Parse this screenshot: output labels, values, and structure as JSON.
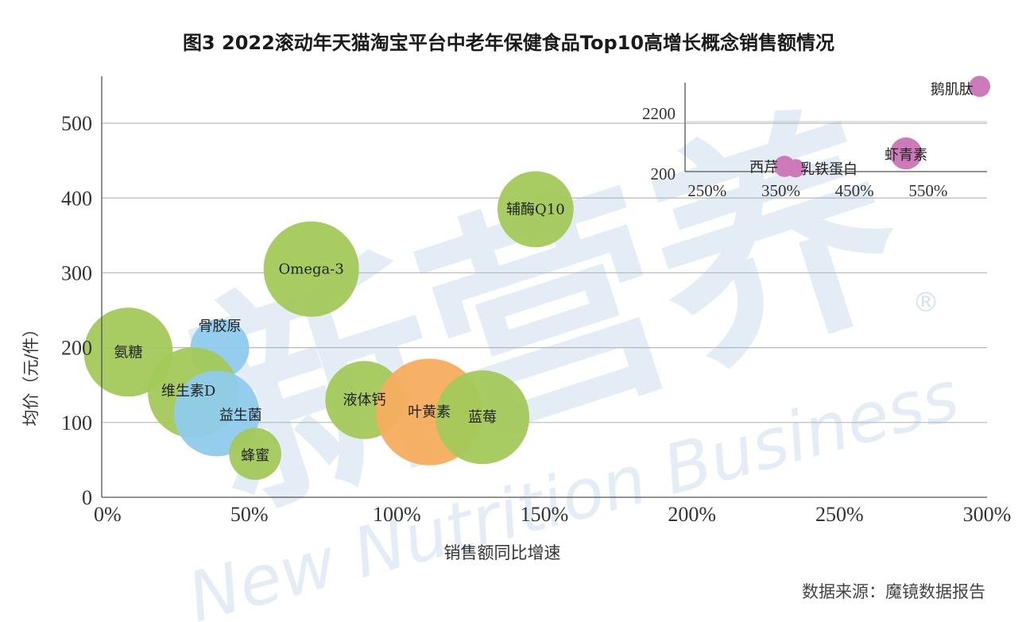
{
  "chart_data": {
    "type": "scatter",
    "title": "图3 2022滚动年天猫淘宝平台中老年保健食品Top10高增长概念销售额情况",
    "xlabel": "销售额同比增速",
    "ylabel": "均价（元/件）",
    "xlim": [
      0,
      3.0
    ],
    "ylim": [
      0,
      550
    ],
    "xticks": [
      "0%",
      "50%",
      "100%",
      "150%",
      "200%",
      "250%",
      "300%"
    ],
    "yticks": [
      "0",
      "100",
      "200",
      "300",
      "400",
      "500"
    ],
    "grid": "horizontal",
    "points": [
      {
        "label": "氨糖",
        "x": 0.09,
        "y": 194,
        "size": 1.0,
        "color": "#a3c95a"
      },
      {
        "label": "骨胶原",
        "x": 0.4,
        "y": 199,
        "size": 0.3,
        "color": "#8fcbec"
      },
      {
        "label": "维生素D",
        "x": 0.31,
        "y": 140,
        "size": 1.05,
        "color": "#a3c95a"
      },
      {
        "label": "益生菌",
        "x": 0.39,
        "y": 112,
        "size": 0.9,
        "color": "#8fcbec"
      },
      {
        "label": "蜂蜜",
        "x": 0.52,
        "y": 58,
        "size": 0.2,
        "color": "#a3c95a"
      },
      {
        "label": "Omega-3",
        "x": 0.71,
        "y": 305,
        "size": 1.2,
        "color": "#a3c95a"
      },
      {
        "label": "液体钙",
        "x": 0.89,
        "y": 130,
        "size": 0.7,
        "color": "#a3c95a"
      },
      {
        "label": "叶黄素",
        "x": 1.11,
        "y": 114,
        "size": 1.6,
        "color": "#f5ad5e"
      },
      {
        "label": "蓝莓",
        "x": 1.29,
        "y": 107,
        "size": 1.15,
        "color": "#a3c95a"
      },
      {
        "label": "辅酶Q10",
        "x": 1.47,
        "y": 385,
        "size": 0.65,
        "color": "#a3c95a"
      }
    ],
    "inset": {
      "xticks": [
        "250%",
        "350%",
        "450%",
        "550%"
      ],
      "yticks": [
        "200",
        "2200"
      ],
      "points": [
        {
          "label": "西芹",
          "x": 3.55,
          "y": 340,
          "size": 0.15,
          "color": "#cc7ab8"
        },
        {
          "label": "乳铁蛋白",
          "x": 3.7,
          "y": 290,
          "size": 0.1,
          "color": "#cc7ab8"
        },
        {
          "label": "虾青素",
          "x": 5.2,
          "y": 690,
          "size": 0.45,
          "color": "#cc7ab8"
        },
        {
          "label": "鹅肌肽",
          "x": 6.2,
          "y": 2500,
          "size": 0.15,
          "color": "#cc7ab8"
        }
      ]
    }
  },
  "source": "数据来源：魔镜数据报告",
  "watermark": {
    "brand": "新营养",
    "english": "New Nutrition Business",
    "mark": "®"
  }
}
